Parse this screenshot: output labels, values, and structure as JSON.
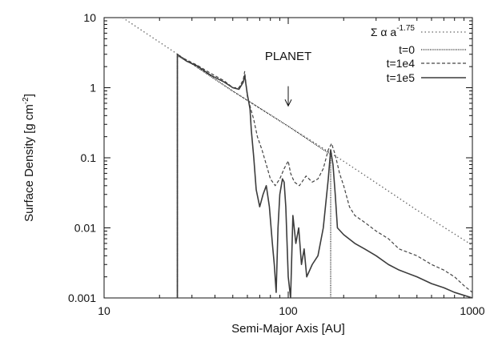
{
  "chart_data": {
    "type": "line",
    "xlabel": "Semi-Major Axis [AU]",
    "ylabel_main": "Surface Density [g cm",
    "ylabel_exp": "-2",
    "ylabel_close": "]",
    "xscale": "log",
    "yscale": "log",
    "xlim": [
      10,
      1000
    ],
    "ylim": [
      0.001,
      10
    ],
    "xticks": [
      {
        "value": 10,
        "label": "10"
      },
      {
        "value": 100,
        "label": "100"
      },
      {
        "value": 1000,
        "label": "1000"
      }
    ],
    "yticks": [
      {
        "value": 10,
        "label": "10"
      },
      {
        "value": 1,
        "label": "1"
      },
      {
        "value": 0.1,
        "label": "0.1"
      },
      {
        "value": 0.01,
        "label": "0.01"
      },
      {
        "value": 0.001,
        "label": "0.001"
      }
    ],
    "grid": false,
    "legend_position": "top-right",
    "annotation": {
      "text": "PLANET",
      "x": 100,
      "arrow_from": 1.05,
      "arrow_to": 0.55
    },
    "series": [
      {
        "name": "Σ α a^-1.75",
        "legend_main": "Σ α a",
        "legend_sup": "-1.75",
        "style": "dotted",
        "color": "#666666",
        "points": [
          [
            12.6,
            10
          ],
          [
            20,
            4.46
          ],
          [
            30,
            2.19
          ],
          [
            50,
            0.894
          ],
          [
            100,
            0.282
          ],
          [
            200,
            0.0891
          ],
          [
            300,
            0.0439
          ],
          [
            500,
            0.0179
          ],
          [
            1000,
            0.00564
          ]
        ]
      },
      {
        "name": "t=0",
        "style": "dense-dotted",
        "color": "#222222",
        "points": [
          [
            25,
            0.001
          ],
          [
            25,
            2.84
          ],
          [
            30,
            2.19
          ],
          [
            50,
            0.894
          ],
          [
            100,
            0.282
          ],
          [
            150,
            0.138
          ],
          [
            170,
            0.112
          ],
          [
            170,
            0.001
          ]
        ]
      },
      {
        "name": "t=1e4",
        "style": "dashed",
        "color": "#444444",
        "points": [
          [
            25,
            0.001
          ],
          [
            25,
            2.9
          ],
          [
            28,
            2.5
          ],
          [
            32,
            2.1
          ],
          [
            38,
            1.6
          ],
          [
            45,
            1.25
          ],
          [
            50,
            1.0
          ],
          [
            54,
            1.0
          ],
          [
            57,
            1.3
          ],
          [
            58,
            1.7
          ],
          [
            60,
            0.75
          ],
          [
            62,
            0.55
          ],
          [
            65,
            0.35
          ],
          [
            68,
            0.2
          ],
          [
            72,
            0.13
          ],
          [
            76,
            0.08
          ],
          [
            80,
            0.05
          ],
          [
            85,
            0.04
          ],
          [
            90,
            0.05
          ],
          [
            95,
            0.07
          ],
          [
            100,
            0.09
          ],
          [
            103,
            0.06
          ],
          [
            108,
            0.045
          ],
          [
            115,
            0.04
          ],
          [
            125,
            0.055
          ],
          [
            135,
            0.045
          ],
          [
            145,
            0.05
          ],
          [
            155,
            0.07
          ],
          [
            165,
            0.13
          ],
          [
            172,
            0.16
          ],
          [
            180,
            0.11
          ],
          [
            190,
            0.06
          ],
          [
            200,
            0.04
          ],
          [
            215,
            0.02
          ],
          [
            230,
            0.015
          ],
          [
            260,
            0.012
          ],
          [
            300,
            0.009
          ],
          [
            350,
            0.007
          ],
          [
            400,
            0.005
          ],
          [
            500,
            0.004
          ],
          [
            600,
            0.003
          ],
          [
            700,
            0.0025
          ],
          [
            800,
            0.002
          ],
          [
            900,
            0.0015
          ],
          [
            1000,
            0.0012
          ]
        ]
      },
      {
        "name": "t=1e5",
        "style": "solid",
        "color": "#3c3c3c",
        "points": [
          [
            25,
            0.001
          ],
          [
            25,
            3.0
          ],
          [
            28,
            2.4
          ],
          [
            32,
            2.05
          ],
          [
            38,
            1.5
          ],
          [
            45,
            1.2
          ],
          [
            50,
            1.0
          ],
          [
            54,
            0.95
          ],
          [
            57,
            1.2
          ],
          [
            58,
            1.5
          ],
          [
            60,
            0.8
          ],
          [
            62,
            0.5
          ],
          [
            63,
            0.25
          ],
          [
            65,
            0.1
          ],
          [
            67,
            0.035
          ],
          [
            70,
            0.02
          ],
          [
            73,
            0.03
          ],
          [
            76,
            0.04
          ],
          [
            79,
            0.02
          ],
          [
            82,
            0.006
          ],
          [
            84,
            0.003
          ],
          [
            86,
            0.0012
          ],
          [
            88,
            0.01
          ],
          [
            90,
            0.03
          ],
          [
            93,
            0.05
          ],
          [
            95,
            0.045
          ],
          [
            97,
            0.02
          ],
          [
            100,
            0.002
          ],
          [
            103,
            0.001
          ],
          [
            106,
            0.015
          ],
          [
            110,
            0.006
          ],
          [
            114,
            0.01
          ],
          [
            118,
            0.003
          ],
          [
            122,
            0.005
          ],
          [
            126,
            0.002
          ],
          [
            135,
            0.003
          ],
          [
            145,
            0.004
          ],
          [
            155,
            0.01
          ],
          [
            165,
            0.05
          ],
          [
            170,
            0.13
          ],
          [
            175,
            0.08
          ],
          [
            180,
            0.03
          ],
          [
            185,
            0.01
          ],
          [
            200,
            0.008
          ],
          [
            230,
            0.006
          ],
          [
            260,
            0.005
          ],
          [
            300,
            0.004
          ],
          [
            350,
            0.003
          ],
          [
            400,
            0.0025
          ],
          [
            500,
            0.002
          ],
          [
            600,
            0.0016
          ],
          [
            700,
            0.0014
          ],
          [
            800,
            0.0012
          ],
          [
            1000,
            0.001
          ]
        ]
      }
    ]
  }
}
